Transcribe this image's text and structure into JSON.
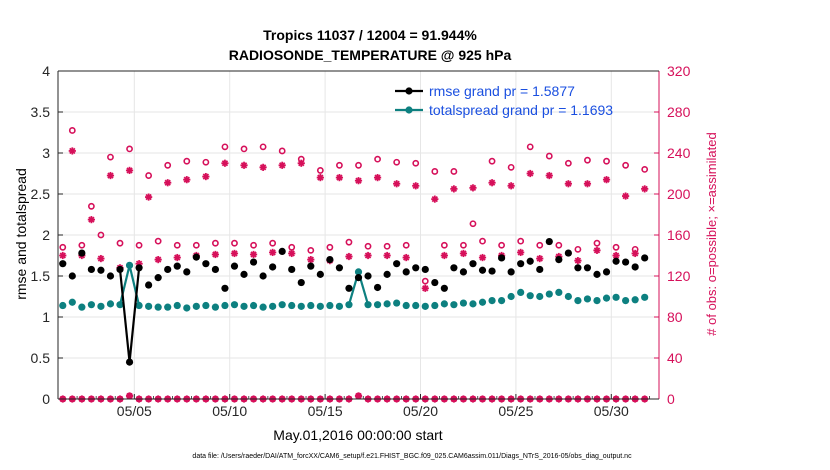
{
  "chart_data": {
    "type": "line",
    "title_line1": "Tropics 11037 / 12004 = 91.944%",
    "title_line2": "RADIOSONDE_TEMPERATURE @ 925 hPa",
    "xlabel": "May.01,2016 00:00:00 start",
    "ylabel": "rmse and totalspread",
    "ylabel_right": "# of obs: o=possible; ×=assimilated",
    "footnote": "data file: /Users/raeder/DAI/ATM_forcXX/CAM6_setup/f.e21.FHIST_BGC.f09_025.CAM6assim.011/Diags_NTrS_2016-05/obs_diag_output.nc",
    "xlim": [
      1.0,
      32.5
    ],
    "ylim": [
      0,
      4
    ],
    "ylim_right": [
      0,
      320
    ],
    "y_ticks": [
      "0",
      "0.5",
      "1",
      "1.5",
      "2",
      "2.5",
      "3",
      "3.5",
      "4"
    ],
    "y_ticks_right": [
      "0",
      "40",
      "80",
      "120",
      "160",
      "200",
      "240",
      "280",
      "320"
    ],
    "x_ticks": [
      {
        "value": 5,
        "label": "05/05"
      },
      {
        "value": 10,
        "label": "05/10"
      },
      {
        "value": 15,
        "label": "05/15"
      },
      {
        "value": 20,
        "label": "05/20"
      },
      {
        "value": 25,
        "label": "05/25"
      },
      {
        "value": 30,
        "label": "05/30"
      }
    ],
    "grid": true,
    "legend_position": "top-right",
    "colors": {
      "rmse": "#000000",
      "spread": "#0d8080",
      "obs": "#d6105a",
      "axis": "#262626",
      "grid": "#e6e6e6",
      "legend_text": "#1a4fe0"
    },
    "series": [
      {
        "name": "rmse grand pr = 1.5877",
        "color": "#000000",
        "x": [
          1.25,
          1.75,
          2.25,
          2.75,
          3.25,
          3.75,
          4.25,
          4.75,
          5.25,
          5.75,
          6.25,
          6.75,
          7.25,
          7.75,
          8.25,
          8.75,
          9.25,
          9.75,
          10.25,
          10.75,
          11.25,
          11.75,
          12.25,
          12.75,
          13.25,
          13.75,
          14.25,
          14.75,
          15.25,
          15.75,
          16.25,
          16.75,
          17.25,
          17.75,
          18.25,
          18.75,
          19.25,
          19.75,
          20.25,
          20.75,
          21.25,
          21.75,
          22.25,
          22.75,
          23.25,
          23.75,
          24.25,
          24.75,
          25.25,
          25.75,
          26.25,
          26.75,
          27.25,
          27.75,
          28.25,
          28.75,
          29.25,
          29.75,
          30.25,
          30.75,
          31.25,
          31.75
        ],
        "values": [
          1.65,
          1.5,
          1.78,
          1.58,
          1.57,
          1.5,
          1.58,
          0.45,
          1.6,
          1.39,
          1.48,
          1.58,
          1.62,
          1.55,
          1.73,
          1.65,
          1.58,
          1.35,
          1.62,
          1.52,
          1.67,
          1.5,
          1.61,
          1.8,
          1.58,
          1.42,
          1.62,
          1.52,
          1.7,
          1.6,
          1.35,
          1.48,
          1.5,
          1.36,
          1.52,
          1.65,
          1.55,
          1.6,
          1.58,
          1.42,
          1.35,
          1.6,
          1.55,
          1.65,
          1.57,
          1.56,
          1.72,
          1.55,
          1.65,
          1.68,
          1.58,
          1.92,
          1.7,
          1.78,
          1.6,
          1.6,
          1.52,
          1.55,
          1.68,
          1.67,
          1.61,
          1.72
        ]
      },
      {
        "name": "totalspread grand pr = 1.1693",
        "color": "#0d8080",
        "x": [
          1.25,
          1.75,
          2.25,
          2.75,
          3.25,
          3.75,
          4.25,
          4.75,
          5.25,
          5.75,
          6.25,
          6.75,
          7.25,
          7.75,
          8.25,
          8.75,
          9.25,
          9.75,
          10.25,
          10.75,
          11.25,
          11.75,
          12.25,
          12.75,
          13.25,
          13.75,
          14.25,
          14.75,
          15.25,
          15.75,
          16.25,
          16.75,
          17.25,
          17.75,
          18.25,
          18.75,
          19.25,
          19.75,
          20.25,
          20.75,
          21.25,
          21.75,
          22.25,
          22.75,
          23.25,
          23.75,
          24.25,
          24.75,
          25.25,
          25.75,
          26.25,
          26.75,
          27.25,
          27.75,
          28.25,
          28.75,
          29.25,
          29.75,
          30.25,
          30.75,
          31.25,
          31.75
        ],
        "values": [
          1.14,
          1.18,
          1.12,
          1.15,
          1.13,
          1.16,
          1.15,
          1.63,
          1.14,
          1.13,
          1.12,
          1.12,
          1.14,
          1.11,
          1.13,
          1.14,
          1.12,
          1.14,
          1.15,
          1.13,
          1.14,
          1.12,
          1.13,
          1.15,
          1.14,
          1.13,
          1.14,
          1.13,
          1.14,
          1.13,
          1.15,
          1.55,
          1.15,
          1.15,
          1.16,
          1.17,
          1.14,
          1.14,
          1.13,
          1.14,
          1.16,
          1.15,
          1.17,
          1.16,
          1.18,
          1.2,
          1.2,
          1.25,
          1.3,
          1.26,
          1.25,
          1.28,
          1.3,
          1.25,
          1.2,
          1.22,
          1.2,
          1.23,
          1.24,
          1.2,
          1.21,
          1.24
        ]
      }
    ],
    "obs_possible": {
      "name": "possible",
      "x": [
        1.25,
        1.75,
        2.25,
        2.75,
        3.25,
        3.75,
        4.25,
        4.75,
        5.25,
        5.75,
        6.25,
        6.75,
        7.25,
        7.75,
        8.25,
        8.75,
        9.25,
        9.75,
        10.25,
        10.75,
        11.25,
        11.75,
        12.25,
        12.75,
        13.25,
        13.75,
        14.25,
        14.75,
        15.25,
        15.75,
        16.25,
        16.75,
        17.25,
        17.75,
        18.25,
        18.75,
        19.25,
        19.75,
        20.25,
        20.75,
        21.25,
        21.75,
        22.25,
        22.75,
        23.25,
        23.75,
        24.25,
        24.75,
        25.25,
        25.75,
        26.25,
        26.75,
        27.25,
        27.75,
        28.25,
        28.75,
        29.25,
        29.75,
        30.25,
        30.75,
        31.25,
        31.75
      ],
      "values": [
        148,
        262,
        150,
        188,
        160,
        236,
        152,
        244,
        150,
        218,
        154,
        228,
        150,
        232,
        150,
        231,
        152,
        246,
        152,
        244,
        150,
        246,
        152,
        242,
        148,
        234,
        145,
        223,
        148,
        228,
        153,
        228,
        149,
        234,
        149,
        231,
        150,
        230,
        115,
        222,
        150,
        222,
        150,
        171,
        154,
        232,
        150,
        226,
        154,
        246,
        150,
        237,
        150,
        230,
        146,
        233,
        152,
        232,
        148,
        228,
        146,
        224
      ]
    },
    "obs_assimilated": {
      "name": "assimilated",
      "x": [
        1.25,
        1.75,
        2.25,
        2.75,
        3.25,
        3.75,
        4.25,
        4.75,
        5.25,
        5.75,
        6.25,
        6.75,
        7.25,
        7.75,
        8.25,
        8.75,
        9.25,
        9.75,
        10.25,
        10.75,
        11.25,
        11.75,
        12.25,
        12.75,
        13.25,
        13.75,
        14.25,
        14.75,
        15.25,
        15.75,
        16.25,
        16.75,
        17.25,
        17.75,
        18.25,
        18.75,
        19.25,
        19.75,
        20.25,
        20.75,
        21.25,
        21.75,
        22.25,
        22.75,
        23.25,
        23.75,
        24.25,
        24.75,
        25.25,
        25.75,
        26.25,
        26.75,
        27.25,
        27.75,
        28.25,
        28.75,
        29.25,
        29.75,
        30.25,
        30.75,
        31.25,
        31.75
      ],
      "values": [
        140,
        242,
        140,
        175,
        137,
        218,
        128,
        223,
        132,
        197,
        136,
        211,
        138,
        214,
        140,
        217,
        141,
        230,
        142,
        228,
        141,
        226,
        143,
        228,
        142,
        230,
        136,
        216,
        135,
        216,
        139,
        213,
        140,
        216,
        140,
        210,
        138,
        208,
        108,
        195,
        140,
        205,
        142,
        206,
        138,
        211,
        140,
        208,
        143,
        220,
        137,
        218,
        139,
        210,
        135,
        210,
        145,
        214,
        140,
        198,
        142,
        205
      ]
    },
    "obs_zero": {
      "x": [
        1.25,
        1.75,
        2.25,
        2.75,
        3.25,
        3.75,
        4.25,
        4.75,
        5.25,
        5.75,
        6.25,
        6.75,
        7.25,
        7.75,
        8.25,
        8.75,
        9.25,
        9.75,
        10.25,
        10.75,
        11.25,
        11.75,
        12.25,
        12.75,
        13.25,
        13.75,
        14.25,
        14.75,
        15.25,
        15.75,
        16.25,
        16.75,
        17.25,
        17.75,
        18.25,
        18.75,
        19.25,
        19.75,
        20.25,
        20.75,
        21.25,
        21.75,
        22.25,
        22.75,
        23.25,
        23.75,
        24.25,
        24.75,
        25.25,
        25.75,
        26.25,
        26.75,
        27.25,
        27.75,
        28.25,
        28.75,
        29.25,
        29.75,
        30.25,
        30.75,
        31.25,
        31.75
      ],
      "values": [
        0,
        0,
        0,
        0,
        0,
        0,
        0,
        3,
        0,
        0,
        0,
        0,
        0,
        0,
        0,
        0,
        0,
        0,
        0,
        0,
        0,
        0,
        0,
        0,
        0,
        0,
        0,
        0,
        0,
        0,
        0,
        3,
        0,
        0,
        0,
        0,
        0,
        0,
        0,
        0,
        0,
        0,
        0,
        0,
        0,
        0,
        0,
        0,
        0,
        0,
        0,
        0,
        0,
        0,
        0,
        0,
        0,
        0,
        0,
        0,
        0,
        0
      ]
    }
  }
}
